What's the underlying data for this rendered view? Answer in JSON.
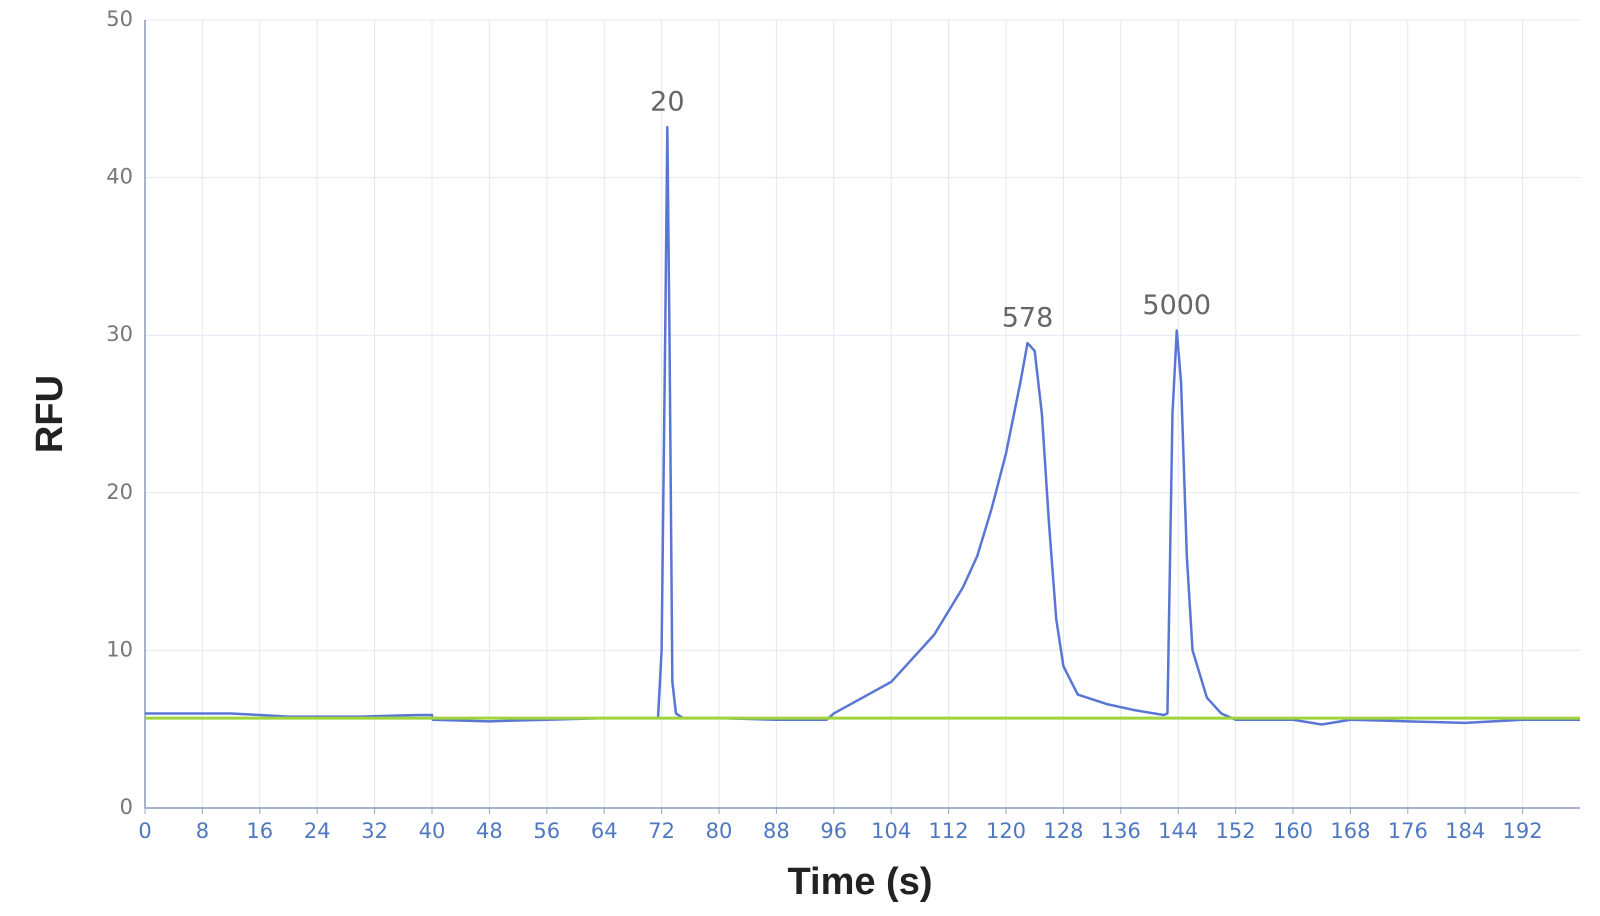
{
  "chart_data": {
    "type": "line",
    "x_label": "Time (s)",
    "y_label": "RFU",
    "xlim": [
      0,
      200
    ],
    "ylim": [
      0,
      50
    ],
    "xticks": [
      0,
      8,
      16,
      24,
      32,
      40,
      48,
      56,
      64,
      72,
      80,
      88,
      96,
      104,
      112,
      120,
      128,
      136,
      144,
      152,
      160,
      168,
      176,
      184,
      192
    ],
    "yticks": [
      0,
      10,
      20,
      30,
      40,
      50
    ],
    "grid": true,
    "series": [
      {
        "color": "#5a76d4",
        "x": [
          0,
          4,
          8,
          12,
          16,
          20,
          30,
          38,
          40,
          40.1,
          48,
          56,
          64,
          71.5,
          72,
          72.5,
          72.8,
          73.1,
          73.5,
          74,
          75,
          80,
          88,
          95,
          96,
          100,
          104,
          106,
          110,
          114,
          116,
          118,
          120,
          122,
          123,
          124,
          125,
          126,
          127,
          128,
          130,
          134,
          138,
          142,
          142.5,
          143.2,
          143.8,
          144.4,
          145.2,
          146,
          148,
          150,
          152,
          160,
          164,
          168,
          176,
          184,
          192,
          200
        ],
        "values": [
          6.0,
          6.0,
          6.0,
          6.0,
          5.9,
          5.8,
          5.8,
          5.9,
          5.9,
          5.6,
          5.5,
          5.6,
          5.7,
          5.7,
          10,
          30,
          43.2,
          30,
          8,
          6.0,
          5.7,
          5.7,
          5.6,
          5.6,
          6.0,
          7.0,
          8.0,
          9.0,
          11.0,
          14.0,
          16.0,
          19.0,
          22.5,
          27.0,
          29.5,
          29.0,
          25.0,
          18.0,
          12.0,
          9.0,
          7.2,
          6.6,
          6.2,
          5.9,
          6.0,
          25.0,
          30.3,
          27.0,
          16.0,
          10.0,
          7.0,
          6.0,
          5.6,
          5.6,
          5.3,
          5.6,
          5.5,
          5.4,
          5.6,
          5.6
        ]
      },
      {
        "color": "#9fd43c",
        "x": [
          0,
          200
        ],
        "values": [
          5.7,
          5.7
        ]
      }
    ],
    "annotations": [
      {
        "text": "20",
        "x": 72.8,
        "y": 43.2
      },
      {
        "text": "578",
        "x": 123,
        "y": 29.5
      },
      {
        "text": "5000",
        "x": 143.8,
        "y": 30.3
      }
    ]
  }
}
